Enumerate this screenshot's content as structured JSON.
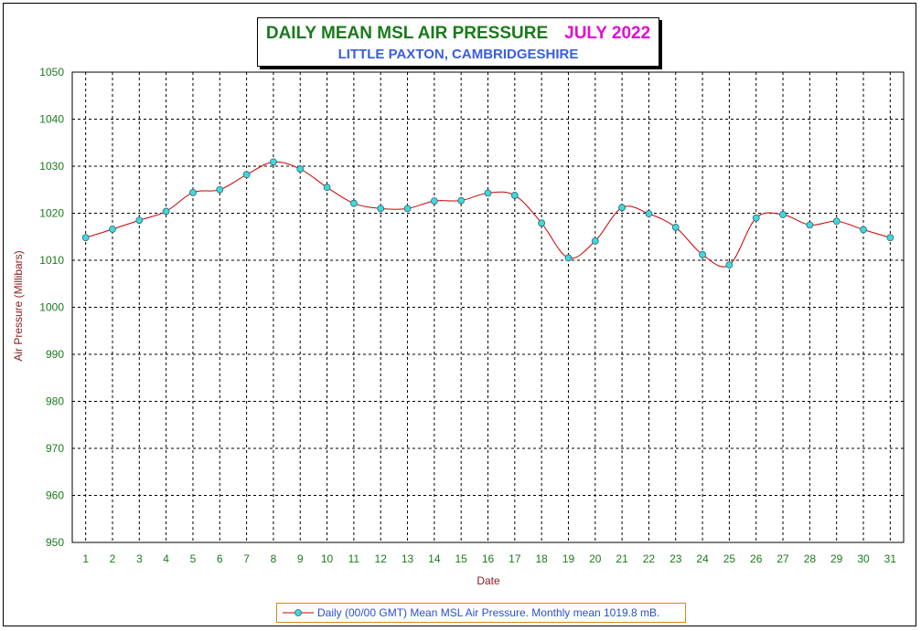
{
  "title": {
    "main": "DAILY MEAN MSL AIR PRESSURE",
    "period": "JULY 2022",
    "subtitle": "LITTLE PAXTON, CAMBRIDGESHIRE"
  },
  "colors": {
    "title_main": "#1b7a1b",
    "title_period": "#e010d0",
    "subtitle": "#3a5ee0",
    "axis_text": "#1b7a1b",
    "axis_label": "#8b1a1a",
    "line": "#cc0000",
    "marker": "#40d8e0",
    "legend_text": "#2a4fd0",
    "legend_border": "#d08a1a"
  },
  "legend": {
    "label": "Daily (00/00 GMT) Mean MSL Air Pressure. Monthly mean 1019.8 mB."
  },
  "chart_data": {
    "type": "line",
    "title": "DAILY MEAN MSL AIR PRESSURE",
    "subtitle": "LITTLE PAXTON, CAMBRIDGESHIRE",
    "xlabel": "Date",
    "ylabel": "Air Pressure (Millibars)",
    "ylim": [
      950,
      1050
    ],
    "yticks": [
      950,
      960,
      970,
      980,
      990,
      1000,
      1010,
      1020,
      1030,
      1040,
      1050
    ],
    "x": [
      1,
      2,
      3,
      4,
      5,
      6,
      7,
      8,
      9,
      10,
      11,
      12,
      13,
      14,
      15,
      16,
      17,
      18,
      19,
      20,
      21,
      22,
      23,
      24,
      25,
      26,
      27,
      28,
      29,
      30,
      31
    ],
    "series": [
      {
        "name": "Daily (00/00 GMT) Mean MSL Air Pressure. Monthly mean 1019.8 mB.",
        "values": [
          1014.8,
          1016.6,
          1018.5,
          1020.4,
          1024.4,
          1025.0,
          1028.2,
          1030.9,
          1029.4,
          1025.5,
          1022.1,
          1021.0,
          1021.0,
          1022.6,
          1022.7,
          1024.3,
          1023.8,
          1017.9,
          1010.5,
          1014.1,
          1021.2,
          1019.9,
          1017.0,
          1011.2,
          1009.0,
          1019.0,
          1019.7,
          1017.5,
          1018.3,
          1016.5,
          1014.8
        ]
      }
    ],
    "grid": true,
    "legend_position": "bottom"
  }
}
